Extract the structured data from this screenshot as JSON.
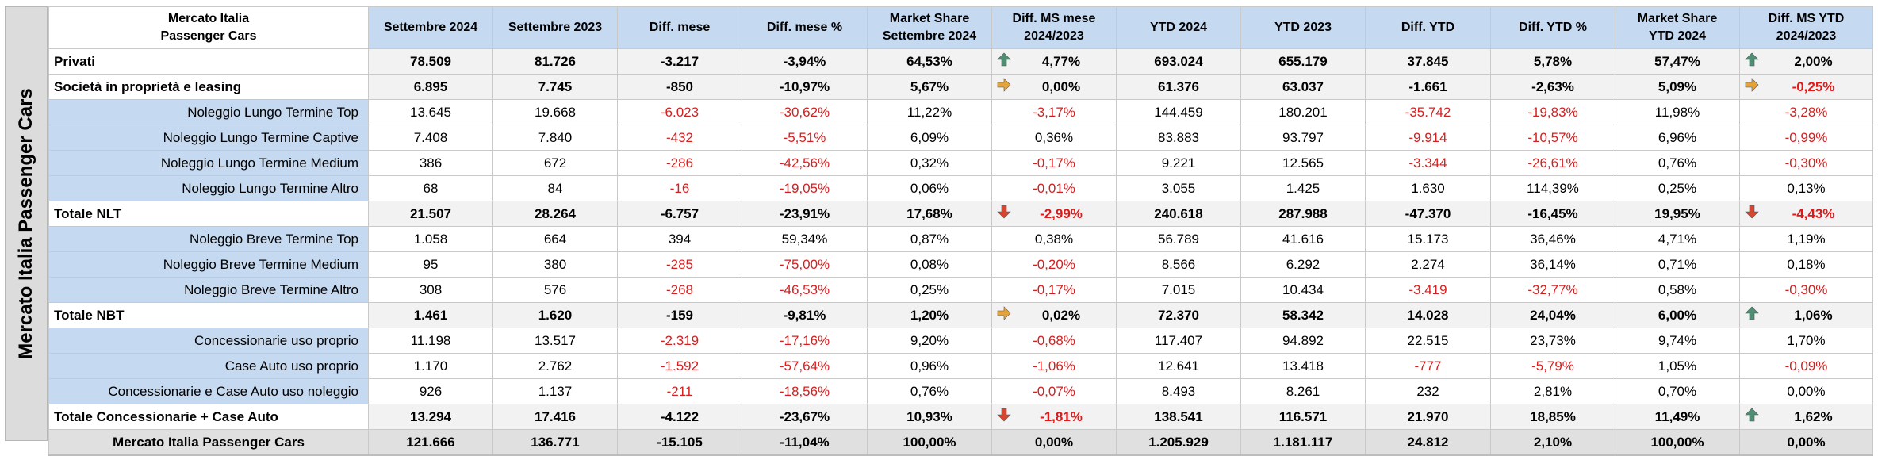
{
  "side_label": "Mercato Italia Passenger Cars",
  "headers": [
    [
      "Mercato Italia",
      "Passenger Cars"
    ],
    [
      "Settembre 2024"
    ],
    [
      "Settembre 2023"
    ],
    [
      "Diff. mese"
    ],
    [
      "Diff. mese %"
    ],
    [
      "Market Share",
      "Settembre 2024"
    ],
    [
      "Diff. MS mese",
      "2024/2023"
    ],
    [
      "YTD 2024"
    ],
    [
      "YTD 2023"
    ],
    [
      "Diff. YTD"
    ],
    [
      "Diff. YTD %"
    ],
    [
      "Market Share",
      "YTD 2024"
    ],
    [
      "Diff. MS YTD",
      "2024/2023"
    ]
  ],
  "arrow_colors": {
    "up": "#4e8f73",
    "right": "#e5a43a",
    "down": "#d6452f"
  },
  "rows": [
    {
      "type": "main",
      "label": "Privati",
      "cells": [
        "78.509",
        "81.726",
        "-3.217",
        "-3,94%",
        "64,53%",
        "4,77%",
        "693.024",
        "655.179",
        "37.845",
        "5,78%",
        "57,47%",
        "2,00%"
      ],
      "neg": [
        2,
        3
      ],
      "arrow_ms": "up",
      "arrow_ytd": "up"
    },
    {
      "type": "main",
      "label": "Società in proprietà e leasing",
      "cells": [
        "6.895",
        "7.745",
        "-850",
        "-10,97%",
        "5,67%",
        "0,00%",
        "61.376",
        "63.037",
        "-1.661",
        "-2,63%",
        "5,09%",
        "-0,25%"
      ],
      "neg": [
        2,
        3,
        8,
        9,
        11
      ],
      "arrow_ms": "right",
      "arrow_ytd": "right"
    },
    {
      "type": "sub",
      "label": "Noleggio Lungo Termine Top",
      "cells": [
        "13.645",
        "19.668",
        "-6.023",
        "-30,62%",
        "11,22%",
        "-3,17%",
        "144.459",
        "180.201",
        "-35.742",
        "-19,83%",
        "11,98%",
        "-3,28%"
      ],
      "neg": [
        2,
        3,
        5,
        8,
        9,
        11
      ]
    },
    {
      "type": "sub",
      "label": "Noleggio Lungo Termine Captive",
      "cells": [
        "7.408",
        "7.840",
        "-432",
        "-5,51%",
        "6,09%",
        "0,36%",
        "83.883",
        "93.797",
        "-9.914",
        "-10,57%",
        "6,96%",
        "-0,99%"
      ],
      "neg": [
        2,
        3,
        8,
        9,
        11
      ]
    },
    {
      "type": "sub",
      "label": "Noleggio Lungo Termine Medium",
      "cells": [
        "386",
        "672",
        "-286",
        "-42,56%",
        "0,32%",
        "-0,17%",
        "9.221",
        "12.565",
        "-3.344",
        "-26,61%",
        "0,76%",
        "-0,30%"
      ],
      "neg": [
        2,
        3,
        5,
        8,
        9,
        11
      ]
    },
    {
      "type": "sub",
      "label": "Noleggio Lungo Termine Altro",
      "cells": [
        "68",
        "84",
        "-16",
        "-19,05%",
        "0,06%",
        "-0,01%",
        "3.055",
        "1.425",
        "1.630",
        "114,39%",
        "0,25%",
        "0,13%"
      ],
      "neg": [
        2,
        3,
        5
      ]
    },
    {
      "type": "main",
      "label": "Totale NLT",
      "cells": [
        "21.507",
        "28.264",
        "-6.757",
        "-23,91%",
        "17,68%",
        "-2,99%",
        "240.618",
        "287.988",
        "-47.370",
        "-16,45%",
        "19,95%",
        "-4,43%"
      ],
      "neg": [
        2,
        3,
        5,
        8,
        9,
        11
      ],
      "arrow_ms": "down",
      "arrow_ytd": "down"
    },
    {
      "type": "sub",
      "label": "Noleggio Breve Termine Top",
      "cells": [
        "1.058",
        "664",
        "394",
        "59,34%",
        "0,87%",
        "0,38%",
        "56.789",
        "41.616",
        "15.173",
        "36,46%",
        "4,71%",
        "1,19%"
      ],
      "neg": []
    },
    {
      "type": "sub",
      "label": "Noleggio Breve Termine Medium",
      "cells": [
        "95",
        "380",
        "-285",
        "-75,00%",
        "0,08%",
        "-0,20%",
        "8.566",
        "6.292",
        "2.274",
        "36,14%",
        "0,71%",
        "0,18%"
      ],
      "neg": [
        2,
        3,
        5
      ]
    },
    {
      "type": "sub",
      "label": "Noleggio Breve Termine Altro",
      "cells": [
        "308",
        "576",
        "-268",
        "-46,53%",
        "0,25%",
        "-0,17%",
        "7.015",
        "10.434",
        "-3.419",
        "-32,77%",
        "0,58%",
        "-0,30%"
      ],
      "neg": [
        2,
        3,
        5,
        8,
        9,
        11
      ]
    },
    {
      "type": "main",
      "label": "Totale NBT",
      "cells": [
        "1.461",
        "1.620",
        "-159",
        "-9,81%",
        "1,20%",
        "0,02%",
        "72.370",
        "58.342",
        "14.028",
        "24,04%",
        "6,00%",
        "1,06%"
      ],
      "neg": [
        2,
        3
      ],
      "arrow_ms": "right",
      "arrow_ytd": "up"
    },
    {
      "type": "sub",
      "label": "Concessionarie uso proprio",
      "cells": [
        "11.198",
        "13.517",
        "-2.319",
        "-17,16%",
        "9,20%",
        "-0,68%",
        "117.407",
        "94.892",
        "22.515",
        "23,73%",
        "9,74%",
        "1,70%"
      ],
      "neg": [
        2,
        3,
        5
      ]
    },
    {
      "type": "sub",
      "label": "Case Auto uso proprio",
      "cells": [
        "1.170",
        "2.762",
        "-1.592",
        "-57,64%",
        "0,96%",
        "-1,06%",
        "12.641",
        "13.418",
        "-777",
        "-5,79%",
        "1,05%",
        "-0,09%"
      ],
      "neg": [
        2,
        3,
        5,
        8,
        9,
        11
      ]
    },
    {
      "type": "sub",
      "label": "Concessionarie e Case Auto uso noleggio",
      "cells": [
        "926",
        "1.137",
        "-211",
        "-18,56%",
        "0,76%",
        "-0,07%",
        "8.493",
        "8.261",
        "232",
        "2,81%",
        "0,70%",
        "0,00%"
      ],
      "neg": [
        2,
        3,
        5
      ]
    },
    {
      "type": "main",
      "label": "Totale Concessionarie + Case Auto",
      "cells": [
        "13.294",
        "17.416",
        "-4.122",
        "-23,67%",
        "10,93%",
        "-1,81%",
        "138.541",
        "116.571",
        "21.970",
        "18,85%",
        "11,49%",
        "1,62%"
      ],
      "neg": [
        2,
        3,
        5
      ],
      "arrow_ms": "down",
      "arrow_ytd": "up"
    },
    {
      "type": "total",
      "label": "Mercato Italia Passenger Cars",
      "cells": [
        "121.666",
        "136.771",
        "-15.105",
        "-11,04%",
        "100,00%",
        "0,00%",
        "1.205.929",
        "1.181.117",
        "24.812",
        "2,10%",
        "100,00%",
        "0,00%"
      ],
      "neg": [
        2,
        3
      ]
    }
  ]
}
